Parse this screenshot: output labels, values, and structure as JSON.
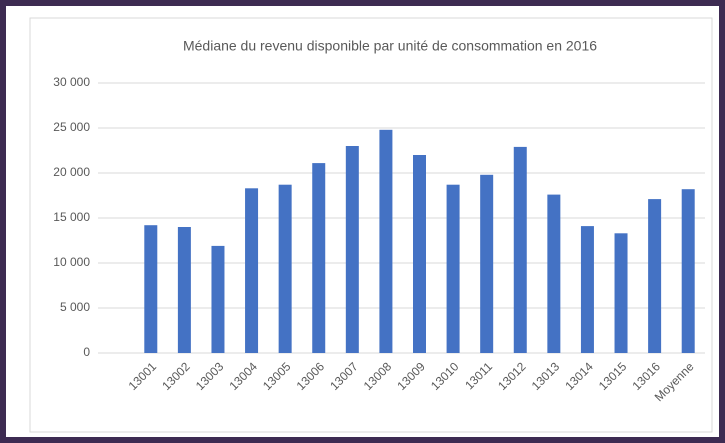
{
  "chart_data": {
    "type": "bar",
    "title": "Médiane du revenu disponible par unité de consommation en 2016",
    "categories": [
      "13001",
      "13002",
      "13003",
      "13004",
      "13005",
      "13006",
      "13007",
      "13008",
      "13009",
      "13010",
      "13011",
      "13012",
      "13013",
      "13014",
      "13015",
      "13016",
      "Moyenne"
    ],
    "values": [
      14200,
      14000,
      11900,
      18300,
      18700,
      21100,
      23000,
      24800,
      22000,
      18700,
      19800,
      22900,
      17600,
      14100,
      13300,
      17100,
      18200
    ],
    "color": "#4472c4",
    "ylim": [
      0,
      30000
    ],
    "yticks": [
      0,
      {
        "value": 5000,
        "label": "5 000"
      },
      {
        "value": 10000,
        "label": "10 000"
      },
      {
        "value": 15000,
        "label": "15 000"
      },
      {
        "value": 20000,
        "label": "20 000"
      },
      {
        "value": 25000,
        "label": "25 000"
      },
      {
        "value": 30000,
        "label": "30 000"
      }
    ],
    "grid": true
  }
}
